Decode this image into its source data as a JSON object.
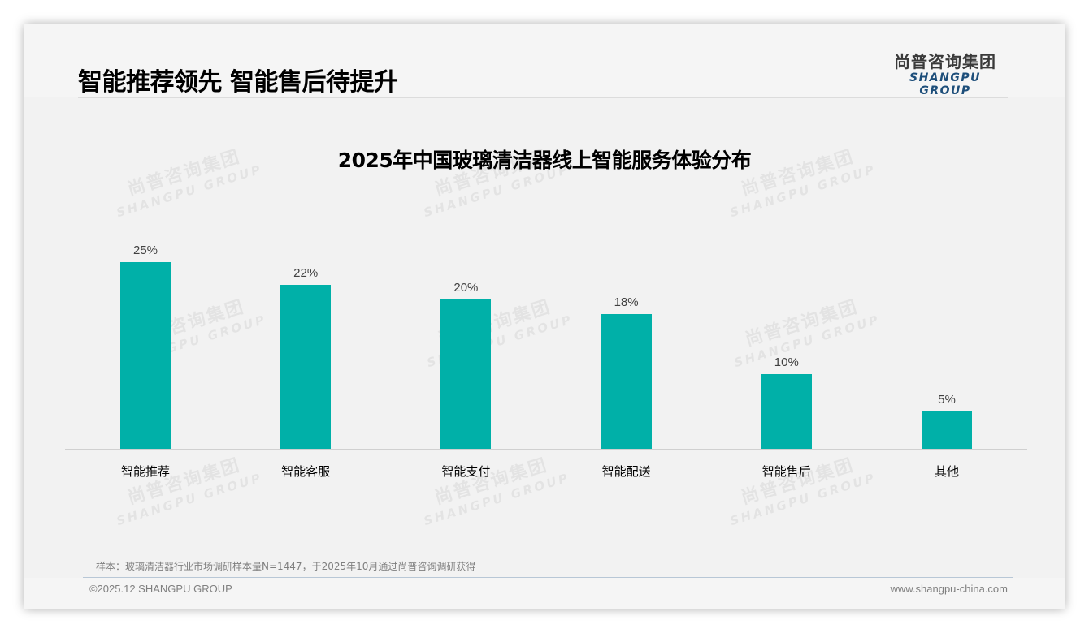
{
  "header": {
    "title": "智能推荐领先 智能售后待提升",
    "logo_cn": "尚普咨询集团",
    "logo_en": "SHANGPU GROUP"
  },
  "watermark": {
    "cn": "尚普咨询集团",
    "en": "SHANGPU GROUP"
  },
  "colors": {
    "bar": "#00b0a8",
    "logo_en": "#1d4e7a"
  },
  "chart_data": {
    "type": "bar",
    "title": "2025年中国玻璃清洁器线上智能服务体验分布",
    "categories": [
      "智能推荐",
      "智能客服",
      "智能支付",
      "智能配送",
      "智能售后",
      "其他"
    ],
    "values": [
      25,
      22,
      20,
      18,
      10,
      5
    ],
    "value_labels": [
      "25%",
      "22%",
      "20%",
      "18%",
      "10%",
      "5%"
    ],
    "unit": "%",
    "xlabel": "",
    "ylabel": "",
    "ylim": [
      0,
      25
    ],
    "grid": false,
    "legend": null
  },
  "footer": {
    "note": "样本：玻璃清洁器行业市场调研样本量N=1447，于2025年10月通过尚普咨询调研获得",
    "copyright": "©2025.12 SHANGPU GROUP",
    "website": "www.shangpu-china.com"
  }
}
